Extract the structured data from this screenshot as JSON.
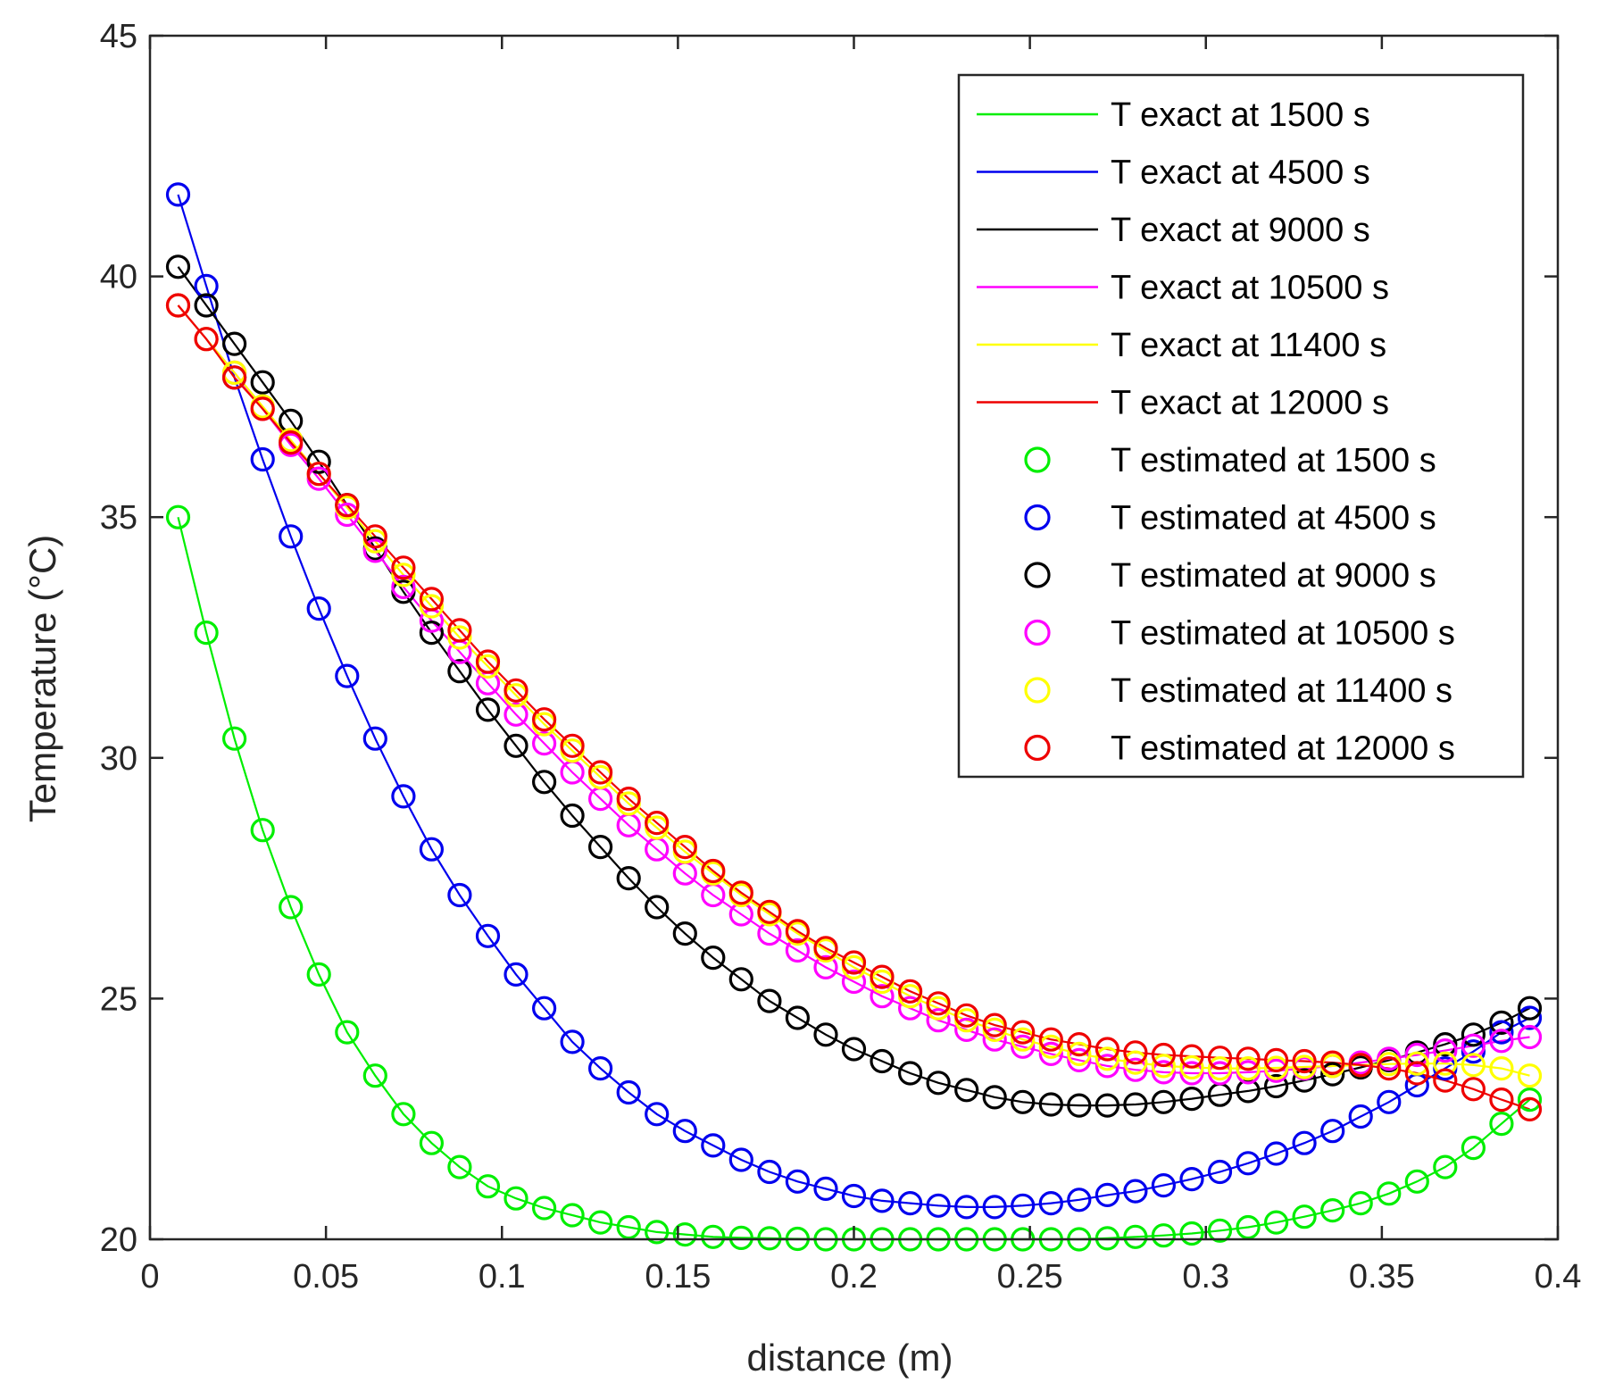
{
  "chart_data": {
    "type": "line",
    "title": "",
    "xlabel": "distance (m)",
    "ylabel": "Temperature (°C)",
    "xlim": [
      0,
      0.4
    ],
    "ylim": [
      20,
      45
    ],
    "xticks": [
      0,
      0.05,
      0.1,
      0.15,
      0.2,
      0.25,
      0.3,
      0.35,
      0.4
    ],
    "xtick_labels": [
      "0",
      "0.05",
      "0.1",
      "0.15",
      "0.2",
      "0.25",
      "0.3",
      "0.35",
      "0.4"
    ],
    "yticks": [
      20,
      25,
      30,
      35,
      40,
      45
    ],
    "ytick_labels": [
      "20",
      "25",
      "30",
      "35",
      "40",
      "45"
    ],
    "grid": false,
    "legend_position": "top-right",
    "x": [
      0.008,
      0.016,
      0.024,
      0.032,
      0.04,
      0.048,
      0.056,
      0.064,
      0.072,
      0.08,
      0.088,
      0.096,
      0.104,
      0.112,
      0.12,
      0.128,
      0.136,
      0.144,
      0.152,
      0.16,
      0.168,
      0.176,
      0.184,
      0.192,
      0.2,
      0.208,
      0.216,
      0.224,
      0.232,
      0.24,
      0.248,
      0.256,
      0.264,
      0.272,
      0.28,
      0.288,
      0.296,
      0.304,
      0.312,
      0.32,
      0.328,
      0.336,
      0.344,
      0.352,
      0.36,
      0.368,
      0.376,
      0.384,
      0.392
    ],
    "series": [
      {
        "name": "1500 s",
        "exact_label": "T exact at 1500 s",
        "estimated_label": "T estimated at 1500 s",
        "color": "#00ee00",
        "values": [
          35.0,
          32.6,
          30.4,
          28.5,
          26.9,
          25.5,
          24.3,
          23.4,
          22.6,
          22.0,
          21.5,
          21.1,
          20.85,
          20.65,
          20.5,
          20.35,
          20.25,
          20.15,
          20.1,
          20.05,
          20.03,
          20.02,
          20.01,
          20.0,
          20.0,
          20.0,
          20.0,
          20.0,
          20.0,
          20.0,
          20.0,
          20.0,
          20.0,
          20.02,
          20.05,
          20.08,
          20.12,
          20.18,
          20.25,
          20.35,
          20.47,
          20.6,
          20.75,
          20.95,
          21.2,
          21.5,
          21.9,
          22.4,
          22.9
        ]
      },
      {
        "name": "4500 s",
        "exact_label": "T exact at 4500 s",
        "estimated_label": "T estimated at 4500 s",
        "color": "#0000ee",
        "values": [
          41.7,
          39.8,
          37.9,
          36.2,
          34.6,
          33.1,
          31.7,
          30.4,
          29.2,
          28.1,
          27.15,
          26.3,
          25.5,
          24.8,
          24.1,
          23.55,
          23.05,
          22.6,
          22.25,
          21.95,
          21.65,
          21.4,
          21.2,
          21.05,
          20.9,
          20.8,
          20.75,
          20.7,
          20.67,
          20.67,
          20.7,
          20.75,
          20.82,
          20.92,
          21.0,
          21.12,
          21.25,
          21.4,
          21.58,
          21.78,
          22.0,
          22.25,
          22.55,
          22.85,
          23.2,
          23.55,
          23.9,
          24.3,
          24.6
        ]
      },
      {
        "name": "9000 s",
        "exact_label": "T exact at 9000 s",
        "estimated_label": "T estimated at 9000 s",
        "color": "#000000",
        "values": [
          40.2,
          39.4,
          38.6,
          37.8,
          37.0,
          36.15,
          35.25,
          34.35,
          33.45,
          32.6,
          31.8,
          31.0,
          30.25,
          29.5,
          28.8,
          28.15,
          27.5,
          26.9,
          26.35,
          25.85,
          25.4,
          24.95,
          24.6,
          24.25,
          23.95,
          23.7,
          23.45,
          23.25,
          23.1,
          22.95,
          22.85,
          22.8,
          22.78,
          22.78,
          22.8,
          22.85,
          22.92,
          23.0,
          23.08,
          23.18,
          23.3,
          23.43,
          23.57,
          23.72,
          23.88,
          24.05,
          24.25,
          24.5,
          24.8
        ]
      },
      {
        "name": "10500 s",
        "exact_label": "T exact at 10500 s",
        "estimated_label": "T estimated at 10500 s",
        "color": "#ff00ff",
        "values": [
          39.4,
          38.7,
          38.0,
          37.25,
          36.5,
          35.8,
          35.05,
          34.3,
          33.55,
          32.85,
          32.2,
          31.55,
          30.9,
          30.3,
          29.7,
          29.15,
          28.6,
          28.1,
          27.6,
          27.15,
          26.75,
          26.35,
          26.0,
          25.65,
          25.35,
          25.05,
          24.8,
          24.55,
          24.35,
          24.15,
          24.0,
          23.85,
          23.72,
          23.6,
          23.52,
          23.47,
          23.45,
          23.45,
          23.47,
          23.5,
          23.55,
          23.6,
          23.67,
          23.75,
          23.83,
          23.92,
          24.02,
          24.12,
          24.2
        ]
      },
      {
        "name": "11400 s",
        "exact_label": "T exact at 11400 s",
        "estimated_label": "T estimated at 11400 s",
        "color": "#ffff00",
        "values": [
          39.4,
          38.7,
          38.0,
          37.3,
          36.6,
          35.9,
          35.2,
          34.5,
          33.8,
          33.15,
          32.5,
          31.9,
          31.3,
          30.7,
          30.15,
          29.6,
          29.05,
          28.55,
          28.05,
          27.6,
          27.15,
          26.75,
          26.35,
          26.0,
          25.65,
          25.35,
          25.05,
          24.8,
          24.55,
          24.35,
          24.15,
          24.0,
          23.85,
          23.75,
          23.67,
          23.6,
          23.57,
          23.55,
          23.55,
          23.56,
          23.58,
          23.6,
          23.62,
          23.64,
          23.65,
          23.65,
          23.62,
          23.55,
          23.4
        ]
      },
      {
        "name": "12000 s",
        "exact_label": "T exact at 12000 s",
        "estimated_label": "T estimated at 12000 s",
        "color": "#ee0000",
        "values": [
          39.4,
          38.7,
          37.9,
          37.25,
          36.55,
          35.9,
          35.25,
          34.6,
          33.95,
          33.3,
          32.65,
          32.0,
          31.4,
          30.8,
          30.25,
          29.7,
          29.15,
          28.65,
          28.15,
          27.65,
          27.2,
          26.8,
          26.4,
          26.05,
          25.75,
          25.45,
          25.15,
          24.9,
          24.65,
          24.45,
          24.3,
          24.15,
          24.05,
          23.95,
          23.88,
          23.83,
          23.8,
          23.77,
          23.75,
          23.72,
          23.7,
          23.67,
          23.62,
          23.55,
          23.45,
          23.3,
          23.12,
          22.9,
          22.7
        ]
      }
    ]
  }
}
